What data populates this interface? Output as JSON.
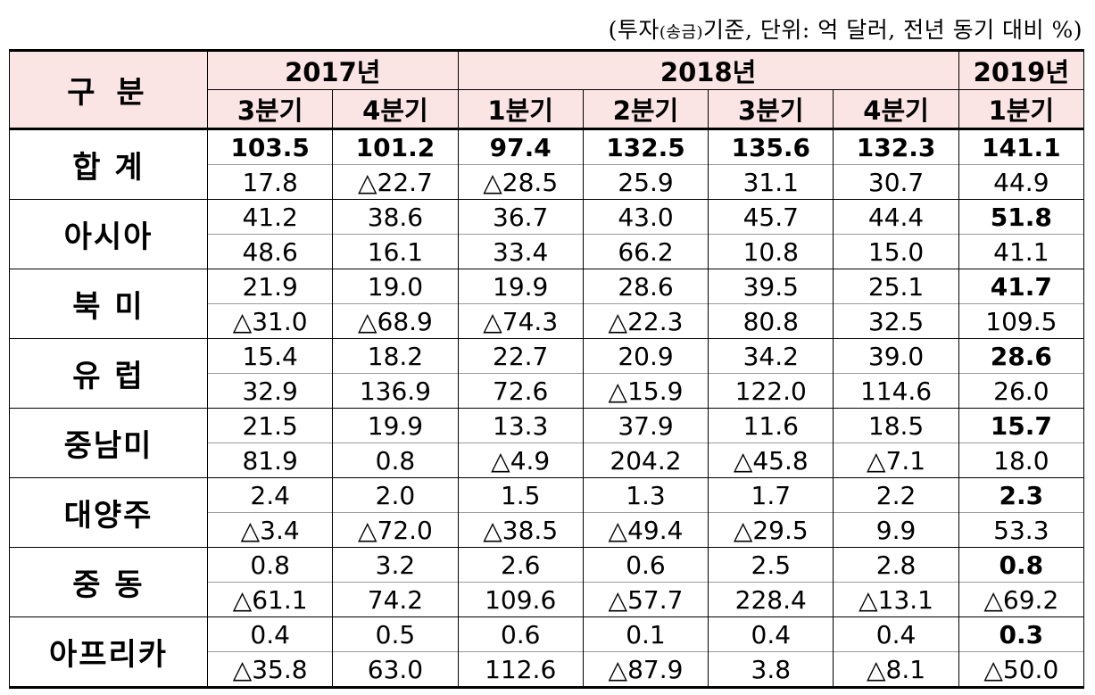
{
  "unit_note": {
    "pre": "(투자",
    "small": "(송금)",
    "post": "기준, 단위: 억 달러, 전년 동기 대비 %)"
  },
  "header": {
    "category": "구 분",
    "years": [
      "2017년",
      "2018년",
      "2019년"
    ],
    "quarters": [
      "3분기",
      "4분기",
      "1분기",
      "2분기",
      "3분기",
      "4분기",
      "1분기"
    ]
  },
  "rows": [
    {
      "region": "합 계",
      "amount": [
        "103.5",
        "101.2",
        "97.4",
        "132.5",
        "135.6",
        "132.3",
        "141.1"
      ],
      "growth": [
        "17.8",
        "△22.7",
        "△28.5",
        "25.9",
        "31.1",
        "30.7",
        "44.9"
      ],
      "amount_bold": true
    },
    {
      "region": "아시아",
      "amount": [
        "41.2",
        "38.6",
        "36.7",
        "43.0",
        "45.7",
        "44.4",
        "51.8"
      ],
      "growth": [
        "48.6",
        "16.1",
        "33.4",
        "66.2",
        "10.8",
        "15.0",
        "41.1"
      ]
    },
    {
      "region": "북 미",
      "amount": [
        "21.9",
        "19.0",
        "19.9",
        "28.6",
        "39.5",
        "25.1",
        "41.7"
      ],
      "growth": [
        "△31.0",
        "△68.9",
        "△74.3",
        "△22.3",
        "80.8",
        "32.5",
        "109.5"
      ]
    },
    {
      "region": "유 럽",
      "amount": [
        "15.4",
        "18.2",
        "22.7",
        "20.9",
        "34.2",
        "39.0",
        "28.6"
      ],
      "growth": [
        "32.9",
        "136.9",
        "72.6",
        "△15.9",
        "122.0",
        "114.6",
        "26.0"
      ]
    },
    {
      "region": "중남미",
      "amount": [
        "21.5",
        "19.9",
        "13.3",
        "37.9",
        "11.6",
        "18.5",
        "15.7"
      ],
      "growth": [
        "81.9",
        "0.8",
        "△4.9",
        "204.2",
        "△45.8",
        "△7.1",
        "18.0"
      ]
    },
    {
      "region": "대양주",
      "amount": [
        "2.4",
        "2.0",
        "1.5",
        "1.3",
        "1.7",
        "2.2",
        "2.3"
      ],
      "growth": [
        "△3.4",
        "△72.0",
        "△38.5",
        "△49.4",
        "△29.5",
        "9.9",
        "53.3"
      ]
    },
    {
      "region": "중 동",
      "amount": [
        "0.8",
        "3.2",
        "2.6",
        "0.6",
        "2.5",
        "2.8",
        "0.8"
      ],
      "growth": [
        "△61.1",
        "74.2",
        "109.6",
        "△57.7",
        "228.4",
        "△13.1",
        "△69.2"
      ]
    },
    {
      "region": "아프리카",
      "amount": [
        "0.4",
        "0.5",
        "0.6",
        "0.1",
        "0.4",
        "0.4",
        "0.3"
      ],
      "growth": [
        "△35.8",
        "63.0",
        "112.6",
        "△87.9",
        "3.8",
        "△8.1",
        "△50.0"
      ]
    }
  ]
}
